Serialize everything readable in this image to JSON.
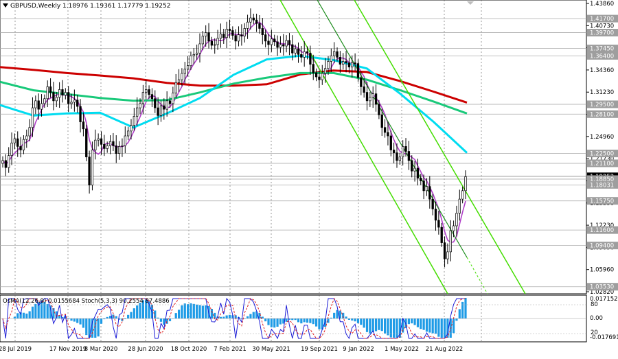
{
  "chart_data": [
    {
      "type": "candlestick",
      "title": "GBPUSD,Weekly  1.18976 1.19361 1.17779 1.19252",
      "symbol": "GBPUSD",
      "timeframe": "Weekly",
      "ohlc_last": {
        "open": 1.18976,
        "high": 1.19361,
        "low": 1.17779,
        "close": 1.19252
      },
      "ylim": [
        1.0282,
        1.4386
      ],
      "price_ticks": [
        "1.43860",
        "1.40730",
        "1.37570",
        "1.34360",
        "1.31230",
        "1.28100",
        "1.24960",
        "1.21730",
        "1.18620",
        "1.15390",
        "1.12230",
        "1.09090",
        "1.05960",
        "1.02820"
      ],
      "level_labels": [
        {
          "value": 1.417,
          "label": "1.41700",
          "color": "#ffffff",
          "bg": "#9e9e9e"
        },
        {
          "value": 1.397,
          "label": "1.39700",
          "color": "#ffffff",
          "bg": "#9e9e9e"
        },
        {
          "value": 1.3745,
          "label": "1.37450",
          "color": "#ffffff",
          "bg": "#9e9e9e"
        },
        {
          "value": 1.364,
          "label": "1.36400",
          "color": "#ffffff",
          "bg": "#9e9e9e"
        },
        {
          "value": 1.295,
          "label": "1.29500",
          "color": "#ffffff",
          "bg": "#9e9e9e"
        },
        {
          "value": 1.281,
          "label": "1.28100",
          "color": "#ffffff",
          "bg": "#9e9e9e"
        },
        {
          "value": 1.225,
          "label": "1.22500",
          "color": "#ffffff",
          "bg": "#9e9e9e"
        },
        {
          "value": 1.211,
          "label": "1.21100",
          "color": "#ffffff",
          "bg": "#9e9e9e"
        },
        {
          "value": 1.1925,
          "label": "1.19252",
          "color": "#ffffff",
          "bg": "#000000"
        },
        {
          "value": 1.1885,
          "label": "1.18850",
          "color": "#ffffff",
          "bg": "#9e9e9e"
        },
        {
          "value": 1.1803,
          "label": "1.18031",
          "color": "#ffffff",
          "bg": "#9e9e9e"
        },
        {
          "value": 1.1575,
          "label": "1.15750",
          "color": "#ffffff",
          "bg": "#9e9e9e"
        },
        {
          "value": 1.116,
          "label": "1.11600",
          "color": "#ffffff",
          "bg": "#9e9e9e"
        },
        {
          "value": 1.094,
          "label": "1.09400",
          "color": "#ffffff",
          "bg": "#9e9e9e"
        },
        {
          "value": 1.0353,
          "label": "1.03530",
          "color": "#ffffff",
          "bg": "#9e9e9e"
        }
      ],
      "x_labels": [
        "28 Jul 2019",
        "17 Nov 2019",
        "8 Mar 2020",
        "28 Jun 2020",
        "18 Oct 2020",
        "7 Feb 2021",
        "30 May 2021",
        "19 Sep 2021",
        "9 Jan 2022",
        "1 May 2022",
        "21 Aug 2022"
      ],
      "close_series": [
        1.215,
        1.205,
        1.222,
        1.24,
        1.246,
        1.235,
        1.23,
        1.245,
        1.25,
        1.262,
        1.29,
        1.3,
        1.288,
        1.296,
        1.303,
        1.32,
        1.312,
        1.3,
        1.305,
        1.316,
        1.308,
        1.312,
        1.296,
        1.298,
        1.301,
        1.292,
        1.27,
        1.26,
        1.22,
        1.18,
        1.23,
        1.244,
        1.246,
        1.238,
        1.232,
        1.236,
        1.242,
        1.236,
        1.225,
        1.235,
        1.236,
        1.25,
        1.257,
        1.265,
        1.278,
        1.29,
        1.296,
        1.312,
        1.316,
        1.309,
        1.303,
        1.29,
        1.279,
        1.293,
        1.288,
        1.3,
        1.296,
        1.311,
        1.326,
        1.33,
        1.339,
        1.345,
        1.35,
        1.364,
        1.366,
        1.368,
        1.381,
        1.392,
        1.397,
        1.385,
        1.379,
        1.38,
        1.389,
        1.395,
        1.39,
        1.402,
        1.4,
        1.393,
        1.385,
        1.394,
        1.392,
        1.403,
        1.412,
        1.418,
        1.415,
        1.41,
        1.403,
        1.394,
        1.385,
        1.38,
        1.388,
        1.384,
        1.376,
        1.38,
        1.378,
        1.386,
        1.38,
        1.368,
        1.374,
        1.366,
        1.362,
        1.37,
        1.368,
        1.352,
        1.34,
        1.334,
        1.33,
        1.339,
        1.346,
        1.356,
        1.364,
        1.37,
        1.362,
        1.352,
        1.356,
        1.354,
        1.348,
        1.354,
        1.353,
        1.333,
        1.32,
        1.312,
        1.3,
        1.305,
        1.31,
        1.295,
        1.28,
        1.262,
        1.255,
        1.25,
        1.23,
        1.226,
        1.215,
        1.22,
        1.235,
        1.228,
        1.215,
        1.2,
        1.204,
        1.19,
        1.186,
        1.172,
        1.178,
        1.16,
        1.146,
        1.13,
        1.12,
        1.098,
        1.075,
        1.085,
        1.115,
        1.122,
        1.14,
        1.16,
        1.172,
        1.192
      ],
      "moving_averages": [
        {
          "name": "MA red",
          "color": "#cc0000",
          "points": [
            1.348,
            1.344,
            1.3395,
            1.336,
            1.332,
            1.3255,
            1.3215,
            1.3215,
            1.3235,
            1.3375,
            1.343,
            1.341,
            1.328,
            1.313,
            1.2975
          ]
        },
        {
          "name": "MA green",
          "color": "#19c97a",
          "points": [
            1.327,
            1.315,
            1.3095,
            1.304,
            1.3,
            1.301,
            1.312,
            1.3245,
            1.333,
            1.3395,
            1.3395,
            1.33,
            1.315,
            1.299,
            1.282
          ]
        },
        {
          "name": "MA cyan",
          "color": "#00dcf0",
          "points": [
            1.294,
            1.279,
            1.282,
            1.283,
            1.262,
            1.282,
            1.304,
            1.337,
            1.359,
            1.364,
            1.358,
            1.346,
            1.31,
            1.27,
            1.226
          ]
        }
      ],
      "channel": {
        "color": "#44dd00"
      },
      "grid": true
    },
    {
      "type": "histogram",
      "title": "OsMA(12,26,9) 0.0155684  Stoch(5,3,3) 90.2554 87.4886",
      "indicators": [
        "OsMA(12,26,9) 0.0155684",
        "Stoch(5,3,3) 90.2554 87.4886"
      ],
      "right_labels": [
        "0.0171522",
        "80",
        "0.00",
        "20",
        "-0.0176910"
      ],
      "osma_color": "#1e9be6",
      "stoch_main_color": "#1a1ad6",
      "stoch_signal_color": "#e02020"
    }
  ]
}
